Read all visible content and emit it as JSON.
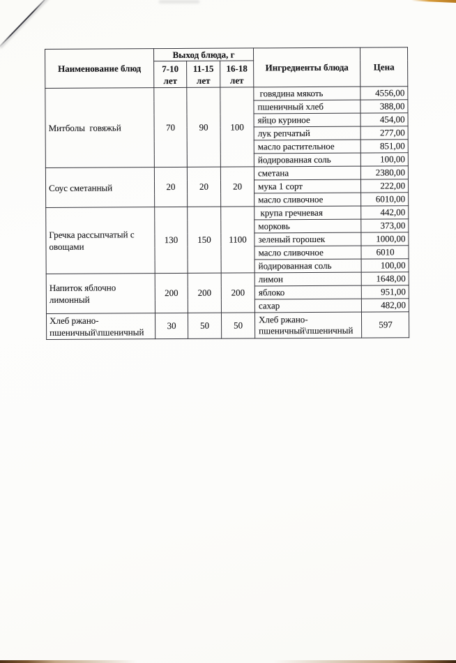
{
  "scan": {
    "paper_color": "#fcfcfa",
    "table_border_color": "#33333a",
    "ink_color": "#17171a",
    "top_corner_strip_color": "#c8882a",
    "bottom_edge_color": "#57351a"
  },
  "table": {
    "header": {
      "name_col": "Наименование блюд",
      "output_group": "Выход блюда, г",
      "age_cols": [
        "7-10\nлет",
        "11-15\nлет",
        "16-18\nлет"
      ],
      "ingredients_col": "Ингредиенты блюда",
      "price_col": "Цена"
    },
    "dishes": [
      {
        "name": "Митболы  говяжьй",
        "portions": [
          "70",
          "90",
          "100"
        ],
        "ingredients": [
          {
            "name": " говядина мякоть",
            "price": "4556,00"
          },
          {
            "name": "пшеничный хлеб",
            "price": "388,00"
          },
          {
            "name": "яйцо куриное",
            "price": "454,00"
          },
          {
            "name": "лук репчатый",
            "price": "277,00"
          },
          {
            "name": "масло растительное",
            "price": "851,00"
          },
          {
            "name": "йодированная соль",
            "price": "100,00"
          }
        ]
      },
      {
        "name": "Соус сметанный",
        "portions": [
          "20",
          "20",
          "20"
        ],
        "ingredients": [
          {
            "name": "сметана",
            "price": "2380,00"
          },
          {
            "name": "мука 1 сорт",
            "price": "222,00"
          },
          {
            "name": "масло сливочное",
            "price": "6010,00"
          }
        ]
      },
      {
        "name": "Гречка рассыпчатый с\nовощами",
        "portions": [
          "130",
          "150",
          "1100"
        ],
        "ingredients": [
          {
            "name": " крупа гречневая",
            "price": "442,00"
          },
          {
            "name": "морковь",
            "price": "373,00"
          },
          {
            "name": "зеленый горошек",
            "price": "1000,00"
          },
          {
            "name": "масло сливочное",
            "price": "6010",
            "align": "center"
          },
          {
            "name": "йодированная соль",
            "price": "100,00"
          }
        ]
      },
      {
        "name": "Напиток яблочно\nлимонный",
        "portions": [
          "200",
          "200",
          "200"
        ],
        "ingredients": [
          {
            "name": "лимон",
            "price": "1648,00"
          },
          {
            "name": "яблоко",
            "price": "951,00"
          },
          {
            "name": "сахар",
            "price": "482,00"
          }
        ]
      },
      {
        "name": "Хлеб ржано-\nпшеничный\\пшеничный",
        "portions": [
          "30",
          "50",
          "50"
        ],
        "ingredients": [
          {
            "name": "Хлеб ржано-\nпшеничный\\пшеничный",
            "price": "597",
            "align": "center"
          }
        ]
      }
    ]
  }
}
